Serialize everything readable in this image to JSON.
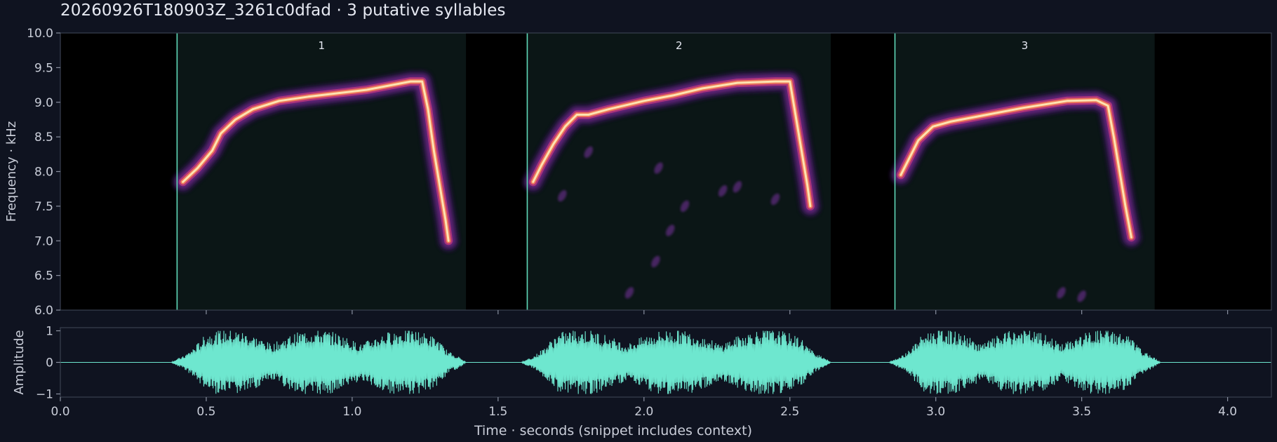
{
  "title": "20260926T180903Z_3261c0dfad  ·  3 putative syllables",
  "colors": {
    "background": "#0f1320",
    "plot_background": "#000000",
    "syllable_shade": "#0b1616",
    "syllable_line": "#5fd9b8",
    "waveform": "#6ee7cf",
    "text": "#c9cdd8",
    "axis": "#8a90a0"
  },
  "chart_data": [
    {
      "type": "heatmap",
      "name": "spectrogram",
      "colormap": "magma",
      "xlim": [
        0.0,
        4.15
      ],
      "ylim": [
        6.0,
        10.0
      ],
      "ylabel": "Frequency · kHz",
      "yticks": [
        "6.0",
        "6.5",
        "7.0",
        "7.5",
        "8.0",
        "8.5",
        "9.0",
        "9.5",
        "10.0"
      ],
      "ytick_values": [
        6.0,
        6.5,
        7.0,
        7.5,
        8.0,
        8.5,
        9.0,
        9.5,
        10.0
      ],
      "xtick_values": [
        0.5,
        1.0,
        1.5,
        2.0,
        2.5,
        3.0,
        3.5,
        4.0
      ],
      "syllables": [
        {
          "label": "1",
          "start": 0.4,
          "end": 1.39
        },
        {
          "label": "2",
          "start": 1.6,
          "end": 2.64
        },
        {
          "label": "3",
          "start": 2.86,
          "end": 3.75
        }
      ],
      "contours": [
        {
          "points": [
            [
              0.42,
              7.85
            ],
            [
              0.47,
              8.05
            ],
            [
              0.52,
              8.3
            ],
            [
              0.55,
              8.55
            ],
            [
              0.6,
              8.75
            ],
            [
              0.66,
              8.9
            ],
            [
              0.75,
              9.02
            ],
            [
              0.85,
              9.08
            ],
            [
              0.95,
              9.13
            ],
            [
              1.05,
              9.18
            ],
            [
              1.15,
              9.26
            ],
            [
              1.2,
              9.3
            ],
            [
              1.24,
              9.3
            ],
            [
              1.26,
              8.9
            ],
            [
              1.28,
              8.3
            ],
            [
              1.3,
              7.8
            ],
            [
              1.32,
              7.3
            ],
            [
              1.33,
              7.0
            ]
          ]
        },
        {
          "points": [
            [
              1.62,
              7.85
            ],
            [
              1.65,
              8.1
            ],
            [
              1.69,
              8.4
            ],
            [
              1.73,
              8.65
            ],
            [
              1.77,
              8.82
            ],
            [
              1.81,
              8.82
            ],
            [
              1.88,
              8.9
            ],
            [
              2.0,
              9.02
            ],
            [
              2.1,
              9.1
            ],
            [
              2.2,
              9.2
            ],
            [
              2.32,
              9.28
            ],
            [
              2.45,
              9.3
            ],
            [
              2.5,
              9.3
            ],
            [
              2.52,
              8.8
            ],
            [
              2.54,
              8.3
            ],
            [
              2.56,
              7.8
            ],
            [
              2.57,
              7.5
            ]
          ]
        },
        {
          "points": [
            [
              2.88,
              7.95
            ],
            [
              2.91,
              8.2
            ],
            [
              2.94,
              8.45
            ],
            [
              2.99,
              8.65
            ],
            [
              3.05,
              8.72
            ],
            [
              3.15,
              8.8
            ],
            [
              3.3,
              8.92
            ],
            [
              3.45,
              9.02
            ],
            [
              3.55,
              9.03
            ],
            [
              3.59,
              8.95
            ],
            [
              3.61,
              8.5
            ],
            [
              3.63,
              8.0
            ],
            [
              3.65,
              7.5
            ],
            [
              3.67,
              7.05
            ]
          ]
        }
      ],
      "noise_blobs": [
        {
          "x": 1.72,
          "y": 7.65
        },
        {
          "x": 1.81,
          "y": 8.28
        },
        {
          "x": 1.95,
          "y": 6.25
        },
        {
          "x": 2.04,
          "y": 6.7
        },
        {
          "x": 2.09,
          "y": 7.15
        },
        {
          "x": 2.14,
          "y": 7.5
        },
        {
          "x": 2.27,
          "y": 7.72
        },
        {
          "x": 2.32,
          "y": 7.78
        },
        {
          "x": 3.5,
          "y": 6.2
        },
        {
          "x": 3.43,
          "y": 6.25
        },
        {
          "x": 2.45,
          "y": 7.6
        },
        {
          "x": 2.05,
          "y": 8.05
        }
      ]
    },
    {
      "type": "line",
      "name": "waveform",
      "xlim": [
        0.0,
        4.15
      ],
      "ylim": [
        -1.1,
        1.1
      ],
      "xlabel": "Time · seconds (snippet includes context)",
      "ylabel": "Amplitude",
      "yticks": [
        "−1",
        "0",
        "1"
      ],
      "ytick_values": [
        -1,
        0,
        1
      ],
      "xticks": [
        "0.0",
        "0.5",
        "1.0",
        "1.5",
        "2.0",
        "2.5",
        "3.0",
        "3.5",
        "4.0"
      ],
      "xtick_values": [
        0.0,
        0.5,
        1.0,
        1.5,
        2.0,
        2.5,
        3.0,
        3.5,
        4.0
      ],
      "bursts": [
        {
          "start": 0.42,
          "end": 1.34
        },
        {
          "start": 1.62,
          "end": 2.59
        },
        {
          "start": 2.88,
          "end": 3.72
        }
      ]
    }
  ]
}
